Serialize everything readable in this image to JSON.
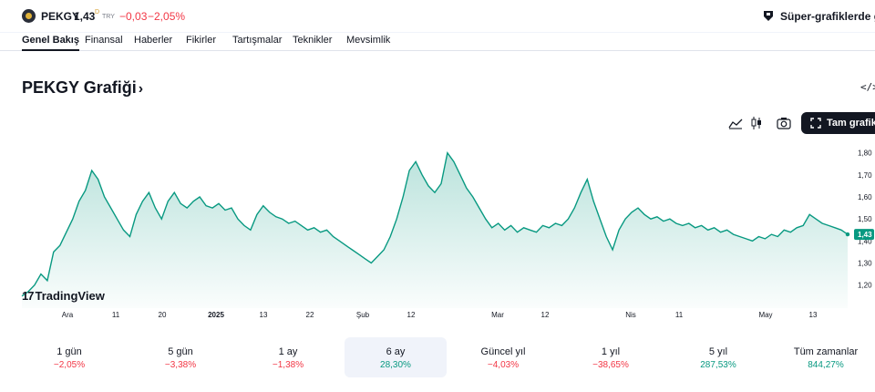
{
  "header": {
    "ticker": "PEKGY",
    "price": "1,43",
    "price_sup": "D",
    "currency": "TRY",
    "change": "−0,03",
    "change_pct": "−2,05%",
    "super_charts_text": "Süper-grafiklerde görün"
  },
  "tabs": [
    "Genel Bakış",
    "Finansal",
    "Haberler",
    "Fikirler",
    "Tartışmalar",
    "Teknikler",
    "Mevsimlik"
  ],
  "chart_title": "PEKGY Grafiği",
  "chart_title_chevron": "›",
  "embed_icon": "</>",
  "toolbar": {
    "area_icon": "area-chart-icon",
    "candles_icon": "candlestick-icon",
    "camera_icon": "camera-icon",
    "fullchart_label": "Tam grafik"
  },
  "brand": "TradingView",
  "colors": {
    "line": "#089981",
    "negative": "#f23645",
    "positive": "#089981",
    "last_label_bg": "#089981"
  },
  "chart_data": {
    "type": "area",
    "x_ticks": [
      "Ara",
      "11",
      "20",
      "2025",
      "13",
      "22",
      "Şub",
      "12",
      "Mar",
      "12",
      "Nis",
      "11",
      "May",
      "13"
    ],
    "y_ticks": [
      "1,80",
      "1,70",
      "1,60",
      "1,50",
      "1,40",
      "1,30",
      "1,20"
    ],
    "ylim": [
      1.12,
      1.84
    ],
    "last_value_label": "1,43",
    "values": [
      1.15,
      1.17,
      1.2,
      1.25,
      1.22,
      1.35,
      1.38,
      1.44,
      1.5,
      1.58,
      1.63,
      1.72,
      1.68,
      1.6,
      1.55,
      1.5,
      1.45,
      1.42,
      1.52,
      1.58,
      1.62,
      1.55,
      1.5,
      1.58,
      1.62,
      1.57,
      1.55,
      1.58,
      1.6,
      1.56,
      1.55,
      1.57,
      1.54,
      1.55,
      1.5,
      1.47,
      1.45,
      1.52,
      1.56,
      1.53,
      1.51,
      1.5,
      1.48,
      1.49,
      1.47,
      1.45,
      1.46,
      1.44,
      1.45,
      1.42,
      1.4,
      1.38,
      1.36,
      1.34,
      1.32,
      1.3,
      1.33,
      1.36,
      1.42,
      1.5,
      1.6,
      1.72,
      1.76,
      1.7,
      1.65,
      1.62,
      1.66,
      1.8,
      1.76,
      1.7,
      1.64,
      1.6,
      1.55,
      1.5,
      1.46,
      1.48,
      1.45,
      1.47,
      1.44,
      1.46,
      1.45,
      1.44,
      1.47,
      1.46,
      1.48,
      1.47,
      1.5,
      1.55,
      1.62,
      1.68,
      1.58,
      1.5,
      1.42,
      1.36,
      1.45,
      1.5,
      1.53,
      1.55,
      1.52,
      1.5,
      1.51,
      1.49,
      1.5,
      1.48,
      1.47,
      1.48,
      1.46,
      1.47,
      1.45,
      1.46,
      1.44,
      1.45,
      1.43,
      1.42,
      1.41,
      1.4,
      1.42,
      1.41,
      1.43,
      1.42,
      1.45,
      1.44,
      1.46,
      1.47,
      1.52,
      1.5,
      1.48,
      1.47,
      1.46,
      1.45,
      1.43
    ]
  },
  "periods": [
    {
      "label": "1 gün",
      "value": "−2,05%",
      "sign": "neg"
    },
    {
      "label": "5 gün",
      "value": "−3,38%",
      "sign": "neg"
    },
    {
      "label": "1 ay",
      "value": "−1,38%",
      "sign": "neg"
    },
    {
      "label": "6 ay",
      "value": "28,30%",
      "sign": "pos"
    },
    {
      "label": "Güncel yıl",
      "value": "−4,03%",
      "sign": "neg"
    },
    {
      "label": "1 yıl",
      "value": "−38,65%",
      "sign": "neg"
    },
    {
      "label": "5 yıl",
      "value": "287,53%",
      "sign": "pos"
    },
    {
      "label": "Tüm zamanlar",
      "value": "844,27%",
      "sign": "pos"
    }
  ]
}
